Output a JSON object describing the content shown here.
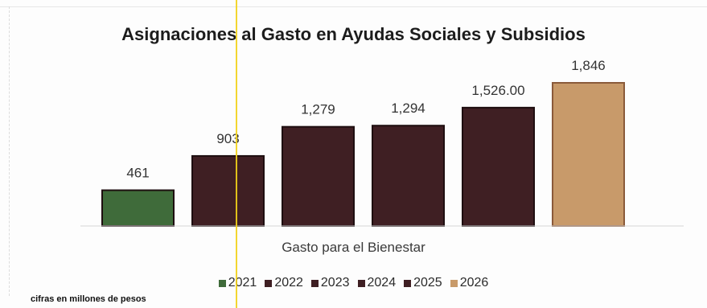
{
  "chart_data": {
    "type": "bar",
    "title": "Asignaciones al Gasto en Ayudas Sociales y Subsidios",
    "xlabel": "Gasto para el Bienestar",
    "ylabel": "",
    "categories": [
      "Gasto para el Bienestar"
    ],
    "ylim": [
      0,
      1846
    ],
    "series": [
      {
        "name": "2021",
        "values": [
          461
        ],
        "label": "461",
        "color": "#3f6b3a"
      },
      {
        "name": "2022",
        "values": [
          903
        ],
        "label": "903",
        "color": "#3f1f23"
      },
      {
        "name": "2023",
        "values": [
          1279
        ],
        "label": "1,279",
        "color": "#3f1f23"
      },
      {
        "name": "2024",
        "values": [
          1294
        ],
        "label": "1,294",
        "color": "#3f1f23"
      },
      {
        "name": "2025",
        "values": [
          1526
        ],
        "label": "1,526.00",
        "color": "#3f1f23"
      },
      {
        "name": "2026",
        "values": [
          1846
        ],
        "label": "1,846",
        "color": "#c89a6a"
      }
    ],
    "legend_position": "bottom",
    "grid": false
  },
  "footnote": "cifras en millones de pesos"
}
